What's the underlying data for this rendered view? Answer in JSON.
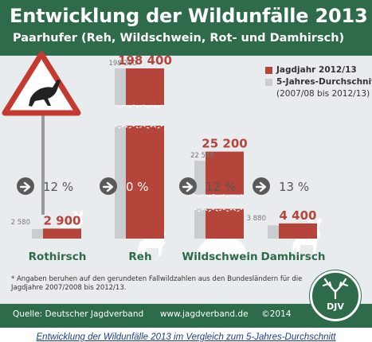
{
  "header": {
    "title": "Entwicklung der Wildunfälle 2013",
    "subtitle": "Paarhufer (Reh, Wildschwein, Rot- und Damhirsch)"
  },
  "legend": {
    "series_current": "Jagdjahr 2012/13",
    "series_average": "5-Jahres-Durchschnitt",
    "series_average_note": "(2007/08 bis 2012/13)"
  },
  "footnote": "* Angaben beruhen auf den gerundeten Fallwildzahlen aus den Bundesländern für die Jagdjahre 2007/2008 bis 2012/13.",
  "footer": {
    "source": "Quelle: Deutscher Jagdverband",
    "url": "www.jagdverband.de",
    "copyright": "©2014"
  },
  "logo_text": "DJV",
  "caption": "Entwicklung der Wildunfälle 2013 im Vergleich zum 5-Jahres-Durchschnitt",
  "colors": {
    "header_green": "#2d6b4a",
    "current_red": "#b5453a",
    "average_gray": "#c9cdcf",
    "background": "#e9ecee",
    "arrow_gray": "#5a5a5a"
  },
  "chart_data": {
    "type": "bar",
    "categories": [
      "Rothirsch",
      "Reh",
      "Wildschwein",
      "Damhirsch"
    ],
    "series": [
      {
        "name": "Jagdjahr 2012/13",
        "values": [
          2900,
          198400,
          25200,
          4400
        ],
        "labels": [
          "2 900",
          "198 400",
          "25 200",
          "4 400"
        ]
      },
      {
        "name": "5-Jahres-Durchschnitt",
        "values": [
          2580,
          198260,
          22540,
          3880
        ],
        "labels": [
          "2 580",
          "198 260",
          "22 540",
          "3 880"
        ]
      }
    ],
    "changes": [
      "12 %",
      "0 %",
      "12 %",
      "13 %"
    ],
    "axis_break": true
  }
}
